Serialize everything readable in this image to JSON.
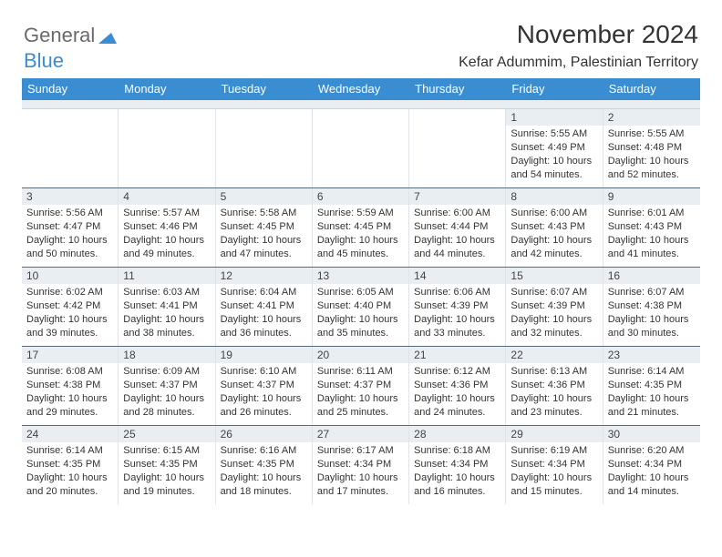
{
  "brand": {
    "part1": "General",
    "part2": "Blue",
    "logo_color1": "#6a6a6a",
    "logo_color2": "#3a8dd0"
  },
  "title": "November 2024",
  "location": "Kefar Adummim, Palestinian Territory",
  "header_bg": "#3a8dd0",
  "header_fg": "#ffffff",
  "daynum_bg": "#e9eef2",
  "border_color": "#5a6a78",
  "daynames": [
    "Sunday",
    "Monday",
    "Tuesday",
    "Wednesday",
    "Thursday",
    "Friday",
    "Saturday"
  ],
  "weeks": [
    [
      {
        "empty": true
      },
      {
        "empty": true
      },
      {
        "empty": true
      },
      {
        "empty": true
      },
      {
        "empty": true
      },
      {
        "day": "1",
        "sunrise": "Sunrise: 5:55 AM",
        "sunset": "Sunset: 4:49 PM",
        "daylight": "Daylight: 10 hours and 54 minutes."
      },
      {
        "day": "2",
        "sunrise": "Sunrise: 5:55 AM",
        "sunset": "Sunset: 4:48 PM",
        "daylight": "Daylight: 10 hours and 52 minutes."
      }
    ],
    [
      {
        "day": "3",
        "sunrise": "Sunrise: 5:56 AM",
        "sunset": "Sunset: 4:47 PM",
        "daylight": "Daylight: 10 hours and 50 minutes."
      },
      {
        "day": "4",
        "sunrise": "Sunrise: 5:57 AM",
        "sunset": "Sunset: 4:46 PM",
        "daylight": "Daylight: 10 hours and 49 minutes."
      },
      {
        "day": "5",
        "sunrise": "Sunrise: 5:58 AM",
        "sunset": "Sunset: 4:45 PM",
        "daylight": "Daylight: 10 hours and 47 minutes."
      },
      {
        "day": "6",
        "sunrise": "Sunrise: 5:59 AM",
        "sunset": "Sunset: 4:45 PM",
        "daylight": "Daylight: 10 hours and 45 minutes."
      },
      {
        "day": "7",
        "sunrise": "Sunrise: 6:00 AM",
        "sunset": "Sunset: 4:44 PM",
        "daylight": "Daylight: 10 hours and 44 minutes."
      },
      {
        "day": "8",
        "sunrise": "Sunrise: 6:00 AM",
        "sunset": "Sunset: 4:43 PM",
        "daylight": "Daylight: 10 hours and 42 minutes."
      },
      {
        "day": "9",
        "sunrise": "Sunrise: 6:01 AM",
        "sunset": "Sunset: 4:43 PM",
        "daylight": "Daylight: 10 hours and 41 minutes."
      }
    ],
    [
      {
        "day": "10",
        "sunrise": "Sunrise: 6:02 AM",
        "sunset": "Sunset: 4:42 PM",
        "daylight": "Daylight: 10 hours and 39 minutes."
      },
      {
        "day": "11",
        "sunrise": "Sunrise: 6:03 AM",
        "sunset": "Sunset: 4:41 PM",
        "daylight": "Daylight: 10 hours and 38 minutes."
      },
      {
        "day": "12",
        "sunrise": "Sunrise: 6:04 AM",
        "sunset": "Sunset: 4:41 PM",
        "daylight": "Daylight: 10 hours and 36 minutes."
      },
      {
        "day": "13",
        "sunrise": "Sunrise: 6:05 AM",
        "sunset": "Sunset: 4:40 PM",
        "daylight": "Daylight: 10 hours and 35 minutes."
      },
      {
        "day": "14",
        "sunrise": "Sunrise: 6:06 AM",
        "sunset": "Sunset: 4:39 PM",
        "daylight": "Daylight: 10 hours and 33 minutes."
      },
      {
        "day": "15",
        "sunrise": "Sunrise: 6:07 AM",
        "sunset": "Sunset: 4:39 PM",
        "daylight": "Daylight: 10 hours and 32 minutes."
      },
      {
        "day": "16",
        "sunrise": "Sunrise: 6:07 AM",
        "sunset": "Sunset: 4:38 PM",
        "daylight": "Daylight: 10 hours and 30 minutes."
      }
    ],
    [
      {
        "day": "17",
        "sunrise": "Sunrise: 6:08 AM",
        "sunset": "Sunset: 4:38 PM",
        "daylight": "Daylight: 10 hours and 29 minutes."
      },
      {
        "day": "18",
        "sunrise": "Sunrise: 6:09 AM",
        "sunset": "Sunset: 4:37 PM",
        "daylight": "Daylight: 10 hours and 28 minutes."
      },
      {
        "day": "19",
        "sunrise": "Sunrise: 6:10 AM",
        "sunset": "Sunset: 4:37 PM",
        "daylight": "Daylight: 10 hours and 26 minutes."
      },
      {
        "day": "20",
        "sunrise": "Sunrise: 6:11 AM",
        "sunset": "Sunset: 4:37 PM",
        "daylight": "Daylight: 10 hours and 25 minutes."
      },
      {
        "day": "21",
        "sunrise": "Sunrise: 6:12 AM",
        "sunset": "Sunset: 4:36 PM",
        "daylight": "Daylight: 10 hours and 24 minutes."
      },
      {
        "day": "22",
        "sunrise": "Sunrise: 6:13 AM",
        "sunset": "Sunset: 4:36 PM",
        "daylight": "Daylight: 10 hours and 23 minutes."
      },
      {
        "day": "23",
        "sunrise": "Sunrise: 6:14 AM",
        "sunset": "Sunset: 4:35 PM",
        "daylight": "Daylight: 10 hours and 21 minutes."
      }
    ],
    [
      {
        "day": "24",
        "sunrise": "Sunrise: 6:14 AM",
        "sunset": "Sunset: 4:35 PM",
        "daylight": "Daylight: 10 hours and 20 minutes."
      },
      {
        "day": "25",
        "sunrise": "Sunrise: 6:15 AM",
        "sunset": "Sunset: 4:35 PM",
        "daylight": "Daylight: 10 hours and 19 minutes."
      },
      {
        "day": "26",
        "sunrise": "Sunrise: 6:16 AM",
        "sunset": "Sunset: 4:35 PM",
        "daylight": "Daylight: 10 hours and 18 minutes."
      },
      {
        "day": "27",
        "sunrise": "Sunrise: 6:17 AM",
        "sunset": "Sunset: 4:34 PM",
        "daylight": "Daylight: 10 hours and 17 minutes."
      },
      {
        "day": "28",
        "sunrise": "Sunrise: 6:18 AM",
        "sunset": "Sunset: 4:34 PM",
        "daylight": "Daylight: 10 hours and 16 minutes."
      },
      {
        "day": "29",
        "sunrise": "Sunrise: 6:19 AM",
        "sunset": "Sunset: 4:34 PM",
        "daylight": "Daylight: 10 hours and 15 minutes."
      },
      {
        "day": "30",
        "sunrise": "Sunrise: 6:20 AM",
        "sunset": "Sunset: 4:34 PM",
        "daylight": "Daylight: 10 hours and 14 minutes."
      }
    ]
  ]
}
